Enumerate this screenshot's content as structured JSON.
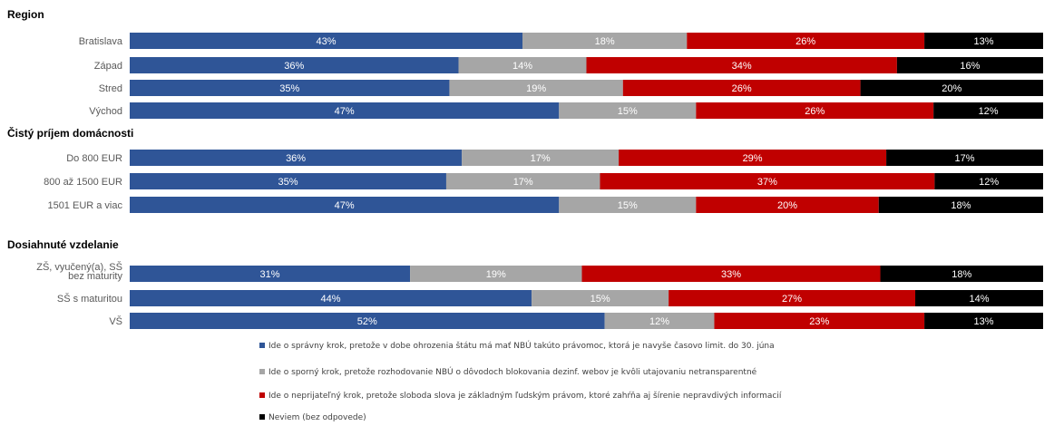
{
  "chart_data": {
    "type": "bar",
    "orientation": "horizontal",
    "stacked": "percent",
    "value_unit": "%",
    "xlim": [
      0,
      100
    ],
    "grid": false,
    "legend_position": "bottom",
    "series": [
      {
        "name": "Ide o správny krok, pretože v dobe ohrozenia štátu má mať NBÚ takúto právomoc, ktorá je navyše časovo limit. do 30. júna",
        "color": "#2F5597"
      },
      {
        "name": "Ide o sporný krok, pretože rozhodovanie NBÚ o dôvodoch blokovania dezinf. webov je kvôli utajovaniu netransparentné",
        "color": "#A6A6A6"
      },
      {
        "name": "Ide o neprijateľný krok, pretože sloboda slova je základným ľudským právom, ktoré zahŕňa aj šírenie nepravdivých informacií",
        "color": "#C00000"
      },
      {
        "name": "Neviem (bez odpovede)",
        "color": "#000000"
      }
    ],
    "groups": [
      {
        "title": "Region",
        "categories": [
          {
            "label": "Bratislava",
            "lines": [
              "Bratislava"
            ],
            "values": [
              43,
              18,
              26,
              13
            ]
          },
          {
            "label": "Západ",
            "lines": [
              "Západ"
            ],
            "values": [
              36,
              14,
              34,
              16
            ]
          },
          {
            "label": "Stred",
            "lines": [
              "Stred"
            ],
            "values": [
              35,
              19,
              26,
              20
            ]
          },
          {
            "label": "Východ",
            "lines": [
              "Východ"
            ],
            "values": [
              47,
              15,
              26,
              12
            ]
          }
        ]
      },
      {
        "title": "Čistý príjem domácnosti",
        "categories": [
          {
            "label": "Do 800 EUR",
            "lines": [
              "Do 800 EUR"
            ],
            "values": [
              36,
              17,
              29,
              17
            ]
          },
          {
            "label": "800 až 1500 EUR",
            "lines": [
              "800 až 1500 EUR"
            ],
            "values": [
              35,
              17,
              37,
              12
            ]
          },
          {
            "label": "1501 EUR a viac",
            "lines": [
              "1501 EUR a viac"
            ],
            "values": [
              47,
              15,
              20,
              18
            ]
          }
        ]
      },
      {
        "title": "Dosiahnuté vzdelanie",
        "categories": [
          {
            "label": "ZŠ, vyučený(a), SŠ bez maturity",
            "lines": [
              "ZŠ, vyučený(a), SŠ",
              "bez maturity"
            ],
            "values": [
              31,
              19,
              33,
              18
            ]
          },
          {
            "label": "SŠ s maturitou",
            "lines": [
              "SŠ s maturitou"
            ],
            "values": [
              44,
              15,
              27,
              14
            ]
          },
          {
            "label": "VŠ",
            "lines": [
              "VŠ"
            ],
            "values": [
              52,
              12,
              23,
              13
            ]
          }
        ]
      }
    ]
  }
}
